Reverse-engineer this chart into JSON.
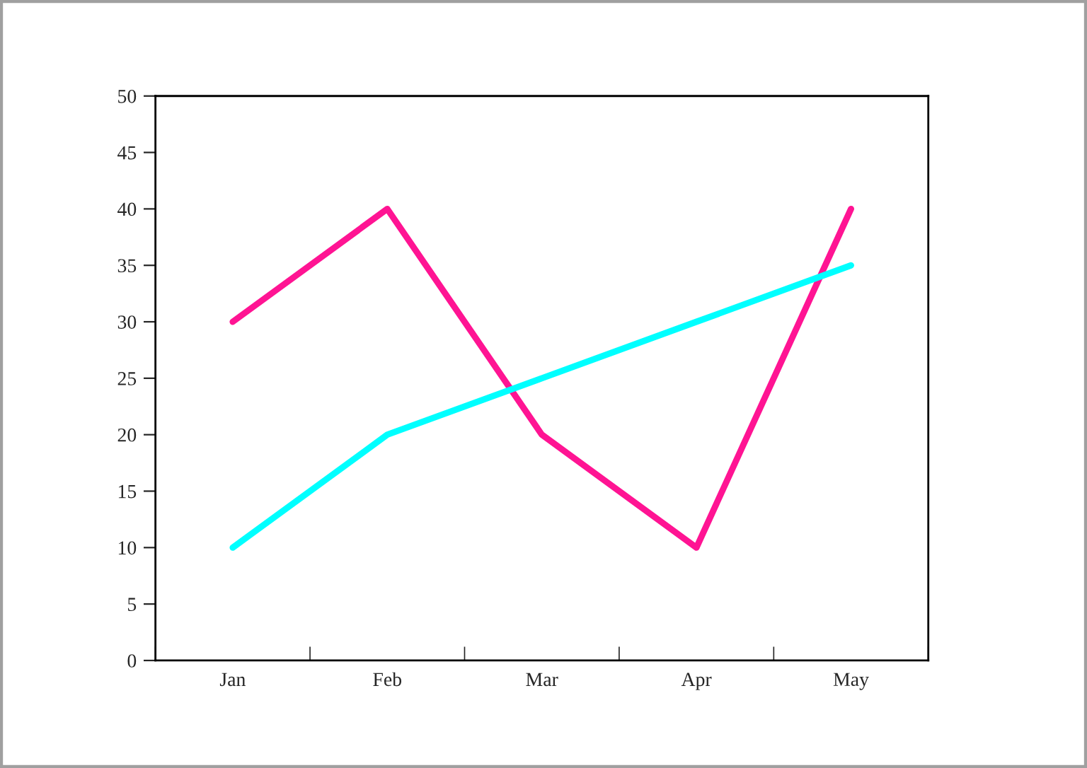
{
  "chart_data": {
    "type": "line",
    "categories": [
      "Jan",
      "Feb",
      "Mar",
      "Apr",
      "May"
    ],
    "series": [
      {
        "color": "#ff1493",
        "values": [
          30,
          40,
          20,
          10,
          40
        ]
      },
      {
        "color": "#00ffff",
        "values": [
          10,
          20,
          25,
          30,
          35
        ]
      }
    ],
    "ylim": [
      0,
      50
    ],
    "yticks": [
      0,
      5,
      10,
      15,
      20,
      25,
      30,
      35,
      40,
      45,
      50
    ],
    "grid": false,
    "marker": "none",
    "line_style": "solid"
  }
}
